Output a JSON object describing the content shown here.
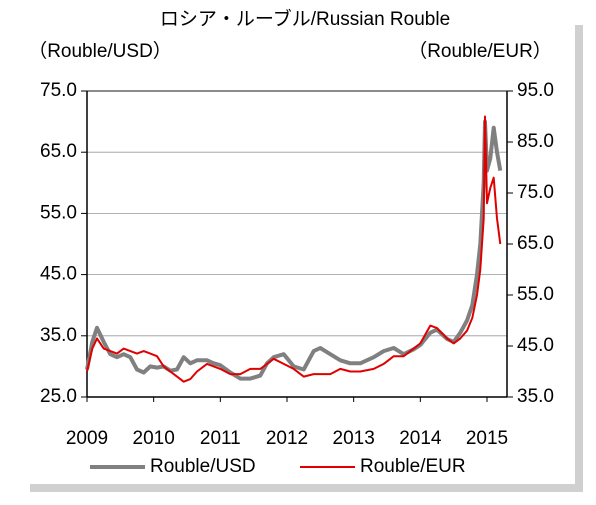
{
  "chart_data": {
    "type": "line",
    "title": "ロシア・ルーブル/Russian Rouble",
    "ylabel": "（Rouble/USD）",
    "y2label": "（Rouble/EUR）",
    "xlim": [
      2009,
      2015.3
    ],
    "xticks": [
      2009,
      2010,
      2011,
      2012,
      2013,
      2014,
      2015
    ],
    "ylim": [
      25,
      75
    ],
    "yticks": [
      {
        "value": 25,
        "label": "25.0"
      },
      {
        "value": 35,
        "label": "35.0"
      },
      {
        "value": 45,
        "label": "45.0"
      },
      {
        "value": 55,
        "label": "55.0"
      },
      {
        "value": 65,
        "label": "65.0"
      },
      {
        "value": 75,
        "label": "75.0"
      }
    ],
    "y2lim": [
      35,
      95
    ],
    "y2ticks": [
      {
        "value": 35,
        "label": "35.0"
      },
      {
        "value": 45,
        "label": "45.0"
      },
      {
        "value": 55,
        "label": "55.0"
      },
      {
        "value": 65,
        "label": "65.0"
      },
      {
        "value": 75,
        "label": "75.0"
      },
      {
        "value": 85,
        "label": "85.0"
      },
      {
        "value": 95,
        "label": "95.0"
      }
    ],
    "grid": true,
    "legend": "bottom",
    "series": [
      {
        "name": "Rouble/USD",
        "color": "#808080",
        "x": [
          2009.0,
          2009.08,
          2009.15,
          2009.25,
          2009.35,
          2009.45,
          2009.55,
          2009.65,
          2009.75,
          2009.85,
          2009.95,
          2010.05,
          2010.15,
          2010.25,
          2010.35,
          2010.45,
          2010.55,
          2010.65,
          2010.8,
          2010.9,
          2011.0,
          2011.15,
          2011.3,
          2011.45,
          2011.6,
          2011.7,
          2011.8,
          2011.95,
          2012.1,
          2012.25,
          2012.4,
          2012.5,
          2012.65,
          2012.8,
          2012.95,
          2013.1,
          2013.3,
          2013.45,
          2013.6,
          2013.75,
          2013.9,
          2014.0,
          2014.15,
          2014.25,
          2014.4,
          2014.5,
          2014.6,
          2014.7,
          2014.78,
          2014.85,
          2014.9,
          2014.95,
          2014.97,
          2015.0,
          2015.05,
          2015.1,
          2015.15,
          2015.2
        ],
        "values": [
          29.5,
          34,
          36.3,
          34,
          32,
          31.5,
          32,
          31.5,
          29.5,
          29,
          30,
          29.8,
          30,
          29.3,
          29.5,
          31.5,
          30.5,
          31,
          31,
          30.5,
          30.2,
          29,
          28,
          28,
          28.5,
          30.5,
          31.5,
          32,
          30,
          29.5,
          32.5,
          33,
          32,
          31,
          30.5,
          30.5,
          31.5,
          32.5,
          33,
          32,
          32.8,
          33.5,
          35.5,
          36,
          34.5,
          34,
          35.5,
          37.5,
          40,
          45,
          50,
          60,
          70,
          62,
          64,
          69,
          65,
          62
        ]
      },
      {
        "name": "Rouble/EUR",
        "color": "#e00000",
        "axis": "y2",
        "x": [
          2009.0,
          2009.08,
          2009.15,
          2009.25,
          2009.35,
          2009.45,
          2009.55,
          2009.65,
          2009.75,
          2009.85,
          2009.95,
          2010.05,
          2010.15,
          2010.25,
          2010.35,
          2010.45,
          2010.55,
          2010.65,
          2010.8,
          2010.9,
          2011.0,
          2011.15,
          2011.3,
          2011.45,
          2011.6,
          2011.7,
          2011.8,
          2011.95,
          2012.1,
          2012.25,
          2012.4,
          2012.5,
          2012.65,
          2012.8,
          2012.95,
          2013.1,
          2013.3,
          2013.45,
          2013.6,
          2013.75,
          2013.9,
          2014.0,
          2014.15,
          2014.25,
          2014.4,
          2014.5,
          2014.6,
          2014.7,
          2014.78,
          2014.85,
          2014.9,
          2014.95,
          2014.97,
          2015.0,
          2015.05,
          2015.1,
          2015.15,
          2015.2
        ],
        "values": [
          40,
          44.5,
          46.5,
          44.5,
          44,
          43.5,
          44.5,
          44,
          43.5,
          44,
          43.5,
          43,
          41,
          40,
          39,
          38,
          38.5,
          40,
          41.5,
          41,
          40.5,
          39.5,
          39.5,
          40.5,
          40.5,
          41.5,
          42.5,
          41.5,
          40.5,
          39,
          39.5,
          39.5,
          39.5,
          40.5,
          40,
          40,
          40.5,
          41.5,
          43,
          43,
          44.5,
          45.5,
          49,
          48.5,
          46.5,
          45.5,
          46.5,
          48,
          50.5,
          55,
          60,
          70,
          90,
          73,
          76,
          78,
          70,
          65
        ]
      }
    ]
  }
}
